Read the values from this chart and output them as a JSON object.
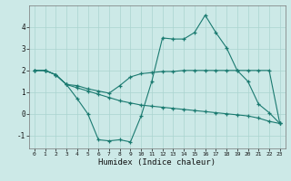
{
  "title": "",
  "xlabel": "Humidex (Indice chaleur)",
  "ylabel": "",
  "background_color": "#cce9e7",
  "grid_color": "#aad4d0",
  "line_color": "#1a7a70",
  "xlim": [
    -0.5,
    23.5
  ],
  "ylim": [
    -1.6,
    5.0
  ],
  "yticks": [
    -1,
    0,
    1,
    2,
    3,
    4
  ],
  "xticks": [
    0,
    1,
    2,
    3,
    4,
    5,
    6,
    7,
    8,
    9,
    10,
    11,
    12,
    13,
    14,
    15,
    16,
    17,
    18,
    19,
    20,
    21,
    22,
    23
  ],
  "series": [
    {
      "x": [
        0,
        1,
        2,
        3,
        4,
        5,
        6,
        7,
        8,
        9,
        10,
        11,
        12,
        13,
        14,
        15,
        16,
        17,
        18,
        19,
        20,
        21,
        22,
        23
      ],
      "y": [
        2.0,
        2.0,
        1.8,
        1.35,
        0.7,
        0.0,
        -1.2,
        -1.25,
        -1.2,
        -1.3,
        -0.1,
        1.5,
        3.5,
        3.45,
        3.45,
        3.75,
        4.55,
        3.75,
        3.05,
        2.0,
        1.5,
        0.45,
        0.05,
        -0.45
      ]
    },
    {
      "x": [
        0,
        1,
        2,
        3,
        4,
        5,
        6,
        7,
        8,
        9,
        10,
        11,
        12,
        13,
        14,
        15,
        16,
        17,
        18,
        19,
        20,
        21,
        22,
        23
      ],
      "y": [
        2.0,
        2.0,
        1.8,
        1.35,
        1.3,
        1.15,
        1.05,
        0.95,
        1.3,
        1.7,
        1.85,
        1.9,
        1.95,
        1.95,
        2.0,
        2.0,
        2.0,
        2.0,
        2.0,
        2.0,
        2.0,
        2.0,
        2.0,
        -0.45
      ]
    },
    {
      "x": [
        0,
        1,
        2,
        3,
        4,
        5,
        6,
        7,
        8,
        9,
        10,
        11,
        12,
        13,
        14,
        15,
        16,
        17,
        18,
        19,
        20,
        21,
        22,
        23
      ],
      "y": [
        2.0,
        2.0,
        1.8,
        1.35,
        1.2,
        1.05,
        0.9,
        0.75,
        0.6,
        0.5,
        0.4,
        0.35,
        0.3,
        0.25,
        0.2,
        0.15,
        0.1,
        0.05,
        0.0,
        -0.05,
        -0.1,
        -0.2,
        -0.35,
        -0.45
      ]
    }
  ]
}
